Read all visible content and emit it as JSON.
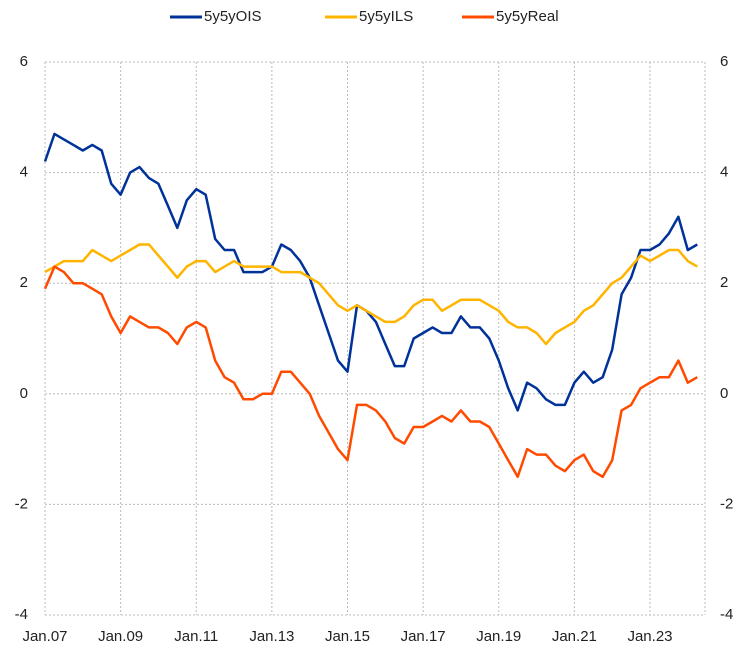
{
  "chart_data": {
    "type": "line",
    "categories": [
      "Jan.07",
      null,
      null,
      null,
      null,
      null,
      null,
      null,
      "Jan.09",
      null,
      null,
      null,
      null,
      null,
      null,
      null,
      "Jan.11",
      null,
      null,
      null,
      null,
      null,
      null,
      null,
      "Jan.13",
      null,
      null,
      null,
      null,
      null,
      null,
      null,
      "Jan.15",
      null,
      null,
      null,
      null,
      null,
      null,
      null,
      "Jan.17",
      null,
      null,
      null,
      null,
      null,
      null,
      null,
      "Jan.19",
      null,
      null,
      null,
      null,
      null,
      null,
      null,
      "Jan.21",
      null,
      null,
      null,
      null,
      null,
      null,
      null,
      "Jan.23",
      null,
      null,
      null,
      null,
      null
    ],
    "series": [
      {
        "name": "5y5yOIS",
        "color": "#003299",
        "values": [
          4.2,
          4.7,
          4.6,
          4.5,
          4.4,
          4.5,
          4.4,
          3.8,
          3.6,
          4.0,
          4.1,
          3.9,
          3.8,
          3.4,
          3.0,
          3.5,
          3.7,
          3.6,
          2.8,
          2.6,
          2.6,
          2.2,
          2.2,
          2.2,
          2.3,
          2.7,
          2.6,
          2.4,
          2.1,
          1.6,
          1.1,
          0.6,
          0.4,
          1.6,
          1.5,
          1.3,
          0.9,
          0.5,
          0.5,
          1.0,
          1.1,
          1.2,
          1.1,
          1.1,
          1.4,
          1.2,
          1.2,
          1.0,
          0.6,
          0.1,
          -0.3,
          0.2,
          0.1,
          -0.1,
          -0.2,
          -0.2,
          0.2,
          0.4,
          0.2,
          0.3,
          0.8,
          1.8,
          2.1,
          2.6,
          2.6,
          2.7,
          2.9,
          3.2,
          2.6,
          2.7
        ]
      },
      {
        "name": "5y5yILS",
        "color": "#ffb400",
        "values": [
          2.2,
          2.3,
          2.4,
          2.4,
          2.4,
          2.6,
          2.5,
          2.4,
          2.5,
          2.6,
          2.7,
          2.7,
          2.5,
          2.3,
          2.1,
          2.3,
          2.4,
          2.4,
          2.2,
          2.3,
          2.4,
          2.3,
          2.3,
          2.3,
          2.3,
          2.2,
          2.2,
          2.2,
          2.1,
          2.0,
          1.8,
          1.6,
          1.5,
          1.6,
          1.5,
          1.4,
          1.3,
          1.3,
          1.4,
          1.6,
          1.7,
          1.7,
          1.5,
          1.6,
          1.7,
          1.7,
          1.7,
          1.6,
          1.5,
          1.3,
          1.2,
          1.2,
          1.1,
          0.9,
          1.1,
          1.2,
          1.3,
          1.5,
          1.6,
          1.8,
          2.0,
          2.1,
          2.3,
          2.5,
          2.4,
          2.5,
          2.6,
          2.6,
          2.4,
          2.3
        ]
      },
      {
        "name": "5y5yReal",
        "color": "#ff4b00",
        "values": [
          1.9,
          2.3,
          2.2,
          2.0,
          2.0,
          1.9,
          1.8,
          1.4,
          1.1,
          1.4,
          1.3,
          1.2,
          1.2,
          1.1,
          0.9,
          1.2,
          1.3,
          1.2,
          0.6,
          0.3,
          0.2,
          -0.1,
          -0.1,
          0.0,
          0.0,
          0.4,
          0.4,
          0.2,
          0.0,
          -0.4,
          -0.7,
          -1.0,
          -1.2,
          -0.2,
          -0.2,
          -0.3,
          -0.5,
          -0.8,
          -0.9,
          -0.6,
          -0.6,
          -0.5,
          -0.4,
          -0.5,
          -0.3,
          -0.5,
          -0.5,
          -0.6,
          -0.9,
          -1.2,
          -1.5,
          -1.0,
          -1.1,
          -1.1,
          -1.3,
          -1.4,
          -1.2,
          -1.1,
          -1.4,
          -1.5,
          -1.2,
          -0.3,
          -0.2,
          0.1,
          0.2,
          0.3,
          0.3,
          0.6,
          0.2,
          0.3
        ]
      }
    ],
    "ylim": [
      -4,
      6
    ],
    "yticks": [
      -4,
      -2,
      0,
      2,
      4,
      6
    ],
    "y2lim": [
      -4,
      6
    ],
    "y2ticks": [
      -4,
      -2,
      0,
      2,
      4,
      6
    ],
    "grid": true,
    "legend": "top"
  }
}
